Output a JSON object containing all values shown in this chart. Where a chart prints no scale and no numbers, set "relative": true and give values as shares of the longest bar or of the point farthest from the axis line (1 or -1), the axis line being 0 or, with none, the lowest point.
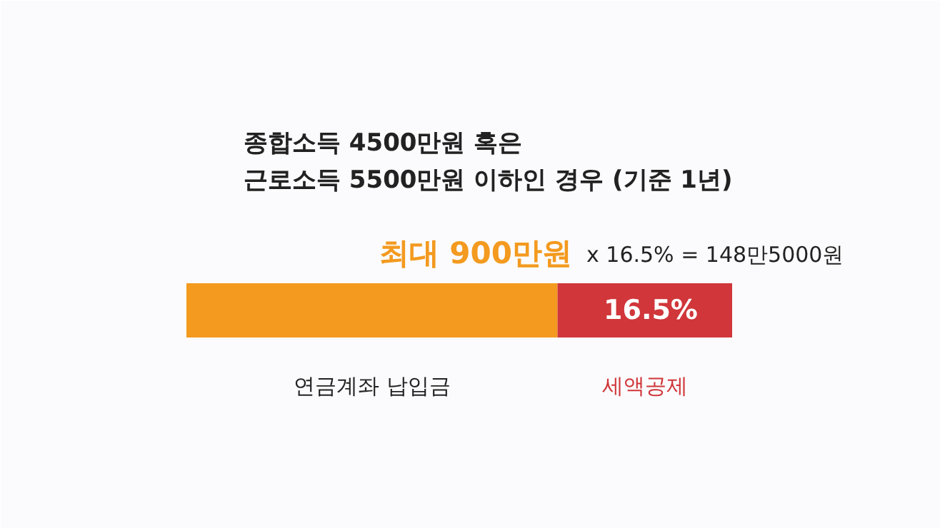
{
  "chart_data": {
    "type": "bar",
    "orientation": "horizontal",
    "stacked": true,
    "relative": true,
    "title": "종합소득 4500만원 혹은",
    "subtitle": "근로소득 5500만원 이하인 경우 (기준 1년)",
    "annotations": [
      "최대 900만원",
      "x 16.5% = 148만5000원",
      "16.5%"
    ],
    "categories": [
      null
    ],
    "series": [
      {
        "name": "연금계좌 납입금",
        "color": "#f39a1f",
        "values": [
          0.68
        ]
      },
      {
        "name": "세액공제",
        "color": "#d0363a",
        "values": [
          0.32
        ]
      }
    ]
  }
}
